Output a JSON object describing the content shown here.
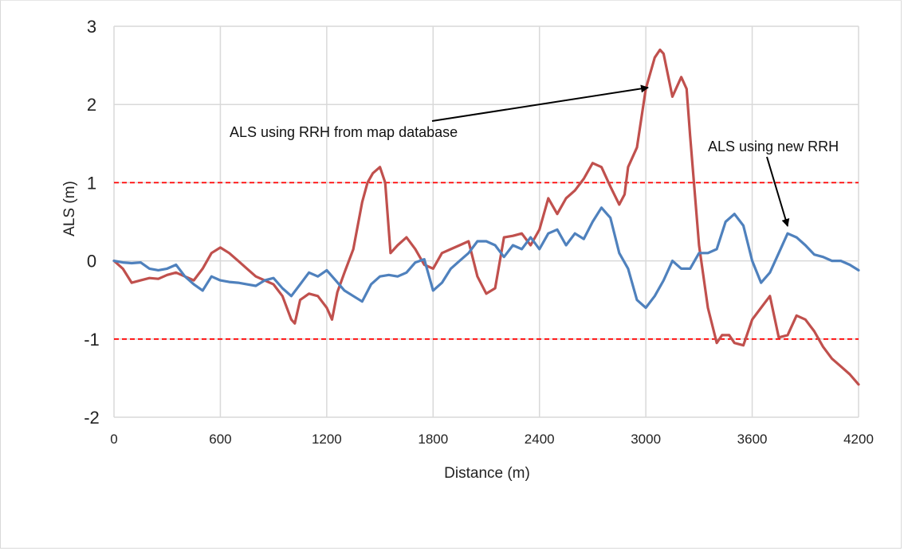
{
  "chart_data": {
    "type": "line",
    "xlabel": "Distance (m)",
    "ylabel": "ALS (m)",
    "xlim": [
      0,
      4200
    ],
    "ylim": [
      -2,
      3
    ],
    "x_ticks": [
      "0",
      "600",
      "1200",
      "1800",
      "2400",
      "3000",
      "3600",
      "4200"
    ],
    "y_ticks": [
      "3",
      "2",
      "1",
      "0",
      "-1",
      "-2"
    ],
    "grid": true,
    "threshold_lines": [
      1,
      -1
    ],
    "colors": {
      "red_series": "#c0504d",
      "blue_series": "#4f81bd",
      "threshold": "#ff0000",
      "grid": "#d9d9d9"
    },
    "annotations": [
      {
        "text": "ALS using RRH from map database",
        "points_to": [
          3040,
          2.2
        ]
      },
      {
        "text": "ALS using  new RRH",
        "points_to": [
          3790,
          0.38
        ]
      }
    ],
    "series": [
      {
        "color": "red",
        "x": [
          0,
          50,
          100,
          150,
          200,
          250,
          300,
          350,
          400,
          450,
          500,
          550,
          600,
          650,
          700,
          750,
          800,
          850,
          900,
          950,
          1000,
          1020,
          1050,
          1100,
          1150,
          1200,
          1230,
          1260,
          1300,
          1350,
          1400,
          1430,
          1460,
          1500,
          1530,
          1560,
          1600,
          1650,
          1700,
          1750,
          1800,
          1850,
          1900,
          1950,
          2000,
          2050,
          2100,
          2150,
          2200,
          2250,
          2300,
          2350,
          2400,
          2450,
          2500,
          2550,
          2600,
          2650,
          2700,
          2750,
          2800,
          2850,
          2880,
          2900,
          2950,
          3000,
          3050,
          3080,
          3100,
          3150,
          3200,
          3230,
          3250,
          3300,
          3350,
          3400,
          3430,
          3470,
          3500,
          3550,
          3600,
          3650,
          3700,
          3750,
          3800,
          3850,
          3900,
          3950,
          4000,
          4050,
          4100,
          4150,
          4200
        ],
        "y": [
          0,
          -0.1,
          -0.28,
          -0.25,
          -0.22,
          -0.23,
          -0.18,
          -0.15,
          -0.2,
          -0.25,
          -0.1,
          0.1,
          0.17,
          0.1,
          0.0,
          -0.1,
          -0.2,
          -0.25,
          -0.3,
          -0.45,
          -0.75,
          -0.8,
          -0.5,
          -0.42,
          -0.45,
          -0.6,
          -0.75,
          -0.4,
          -0.15,
          0.15,
          0.75,
          1.0,
          1.12,
          1.2,
          1.0,
          0.1,
          0.2,
          0.3,
          0.15,
          -0.05,
          -0.1,
          0.1,
          0.15,
          0.2,
          0.25,
          -0.2,
          -0.42,
          -0.35,
          0.3,
          0.32,
          0.35,
          0.2,
          0.4,
          0.8,
          0.6,
          0.8,
          0.9,
          1.05,
          1.25,
          1.2,
          0.95,
          0.72,
          0.85,
          1.2,
          1.45,
          2.2,
          2.6,
          2.7,
          2.65,
          2.1,
          2.35,
          2.2,
          1.6,
          0.2,
          -0.6,
          -1.05,
          -0.95,
          -0.95,
          -1.05,
          -1.08,
          -0.75,
          -0.6,
          -0.45,
          -0.98,
          -0.95,
          -0.7,
          -0.75,
          -0.9,
          -1.1,
          -1.25,
          -1.35,
          -1.45,
          -1.58
        ]
      },
      {
        "color": "blue",
        "x": [
          0,
          50,
          100,
          150,
          200,
          250,
          300,
          350,
          400,
          450,
          500,
          550,
          600,
          650,
          700,
          750,
          800,
          850,
          900,
          950,
          1000,
          1050,
          1100,
          1150,
          1200,
          1250,
          1300,
          1350,
          1400,
          1450,
          1500,
          1550,
          1600,
          1650,
          1700,
          1750,
          1800,
          1850,
          1900,
          1950,
          2000,
          2050,
          2100,
          2150,
          2200,
          2250,
          2300,
          2350,
          2400,
          2450,
          2500,
          2550,
          2600,
          2650,
          2700,
          2750,
          2800,
          2850,
          2900,
          2950,
          3000,
          3050,
          3100,
          3150,
          3200,
          3250,
          3300,
          3350,
          3400,
          3450,
          3500,
          3550,
          3600,
          3650,
          3700,
          3750,
          3800,
          3850,
          3900,
          3950,
          4000,
          4050,
          4100,
          4150,
          4200
        ],
        "y": [
          0,
          -0.02,
          -0.03,
          -0.02,
          -0.1,
          -0.12,
          -0.1,
          -0.05,
          -0.2,
          -0.3,
          -0.38,
          -0.2,
          -0.25,
          -0.27,
          -0.28,
          -0.3,
          -0.32,
          -0.25,
          -0.22,
          -0.35,
          -0.45,
          -0.3,
          -0.15,
          -0.2,
          -0.12,
          -0.25,
          -0.38,
          -0.45,
          -0.52,
          -0.3,
          -0.2,
          -0.18,
          -0.2,
          -0.15,
          -0.02,
          0.02,
          -0.38,
          -0.28,
          -0.1,
          0.0,
          0.1,
          0.25,
          0.25,
          0.2,
          0.05,
          0.2,
          0.15,
          0.3,
          0.15,
          0.35,
          0.4,
          0.2,
          0.35,
          0.28,
          0.5,
          0.68,
          0.55,
          0.1,
          -0.1,
          -0.5,
          -0.6,
          -0.45,
          -0.25,
          0.0,
          -0.1,
          -0.1,
          0.1,
          0.1,
          0.15,
          0.5,
          0.6,
          0.45,
          0.0,
          -0.28,
          -0.15,
          0.1,
          0.35,
          0.3,
          0.2,
          0.08,
          0.05,
          0.0,
          0.0,
          -0.05,
          -0.12
        ]
      }
    ]
  }
}
